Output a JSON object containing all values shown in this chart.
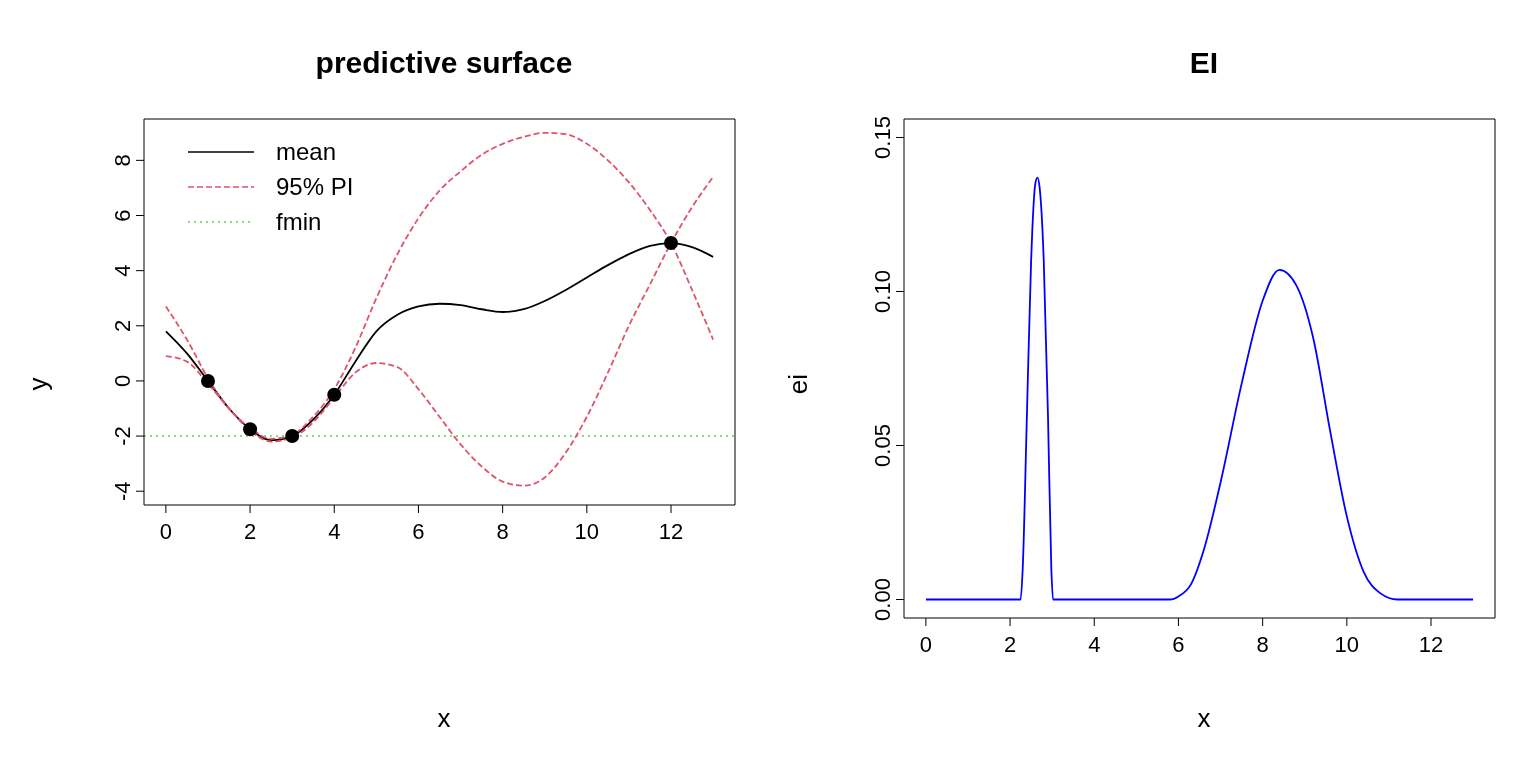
{
  "chart_data": [
    {
      "type": "line",
      "title": "predictive surface",
      "xlabel": "x",
      "ylabel": "y",
      "xlim": [
        -0.52,
        13.52
      ],
      "ylim": [
        -4.5,
        9.5
      ],
      "xticks": [
        0,
        2,
        4,
        6,
        8,
        10,
        12
      ],
      "yticks": [
        -4,
        -2,
        0,
        2,
        4,
        6,
        8
      ],
      "legend": "top left",
      "series": [
        {
          "name": "mean",
          "color": "#000000",
          "line_style": "solid",
          "marker": "none",
          "x": [
            0,
            0.5,
            1,
            1.5,
            2,
            2.5,
            3,
            3.5,
            4,
            4.5,
            5,
            5.5,
            6,
            6.5,
            7,
            7.5,
            8,
            8.5,
            9,
            9.5,
            10,
            10.5,
            11,
            11.5,
            12,
            12.5,
            13
          ],
          "values": [
            1.8,
            1.0,
            0,
            -1.0,
            -1.75,
            -2.15,
            -2.0,
            -1.4,
            -0.5,
            0.7,
            1.8,
            2.4,
            2.7,
            2.8,
            2.75,
            2.6,
            2.5,
            2.6,
            2.9,
            3.3,
            3.75,
            4.2,
            4.6,
            4.9,
            5.0,
            4.85,
            4.5
          ]
        },
        {
          "name": "95% PI",
          "color": "#df536b",
          "line_style": "dashed",
          "marker": "none",
          "x": [
            0,
            0.5,
            1,
            1.5,
            2,
            2.5,
            3,
            3.5,
            4,
            4.5,
            5,
            5.5,
            6,
            6.5,
            7,
            7.5,
            8,
            8.5,
            9,
            9.5,
            10,
            10.5,
            11,
            11.5,
            12,
            12.5,
            13
          ],
          "values": [
            2.7,
            1.5,
            0.1,
            -1.0,
            -1.7,
            -2.1,
            -1.95,
            -1.3,
            -0.3,
            1.2,
            3.0,
            4.6,
            5.9,
            6.9,
            7.6,
            8.2,
            8.6,
            8.85,
            9.0,
            8.95,
            8.6,
            8.0,
            7.2,
            6.2,
            5.0,
            3.3,
            1.5
          ]
        },
        {
          "color": "#df536b",
          "line_style": "dashed",
          "marker": "none",
          "x": [
            0,
            0.5,
            1,
            1.5,
            2,
            2.5,
            3,
            3.5,
            4,
            4.5,
            5,
            5.5,
            6,
            6.5,
            7,
            7.5,
            8,
            8.5,
            9,
            9.5,
            10,
            10.5,
            11,
            11.5,
            12,
            12.5,
            13
          ],
          "values": [
            0.9,
            0.7,
            -0.1,
            -1.0,
            -1.8,
            -2.2,
            -2.05,
            -1.5,
            -0.6,
            0.3,
            0.65,
            0.5,
            -0.3,
            -1.3,
            -2.3,
            -3.1,
            -3.65,
            -3.8,
            -3.5,
            -2.6,
            -1.3,
            0.3,
            2.0,
            3.5,
            5.0,
            6.3,
            7.4
          ]
        },
        {
          "type": "scatter",
          "color": "#000000",
          "marker": "circle",
          "x": [
            1,
            2,
            3,
            4,
            12
          ],
          "values": [
            0,
            -1.75,
            -2,
            -0.5,
            5
          ]
        }
      ],
      "ref_lines": [
        {
          "axis": "y",
          "value": -2,
          "label": "fmin",
          "color": "#61d04f",
          "line_style": "dotted"
        }
      ]
    },
    {
      "type": "line",
      "title": "EI",
      "xlabel": "x",
      "ylabel": "ei",
      "xlim": [
        -0.52,
        13.52
      ],
      "ylim": [
        -0.006,
        0.156
      ],
      "xticks": [
        0,
        2,
        4,
        6,
        8,
        10,
        12
      ],
      "yticks": [
        {
          "value": 0,
          "label": "0.00"
        },
        0.05,
        {
          "value": 0.1,
          "label": "0.10"
        },
        0.15
      ],
      "series": [
        {
          "color": "#0000ff",
          "line_style": "solid",
          "marker": "none",
          "x": [
            0,
            2.25,
            2.3,
            2.4,
            2.5,
            2.6,
            2.65,
            2.7,
            2.8,
            2.9,
            2.98,
            3.02,
            5.8,
            6.0,
            6.3,
            6.6,
            7,
            7.5,
            8,
            8.4,
            8.8,
            9.2,
            9.6,
            10,
            10.4,
            10.8,
            11.2,
            13
          ],
          "values": [
            0,
            0,
            0.01,
            0.06,
            0.11,
            0.135,
            0.137,
            0.134,
            0.11,
            0.06,
            0.01,
            0,
            0,
            0.001,
            0.005,
            0.016,
            0.038,
            0.07,
            0.097,
            0.107,
            0.102,
            0.085,
            0.055,
            0.027,
            0.009,
            0.002,
            0,
            0
          ]
        }
      ]
    }
  ]
}
